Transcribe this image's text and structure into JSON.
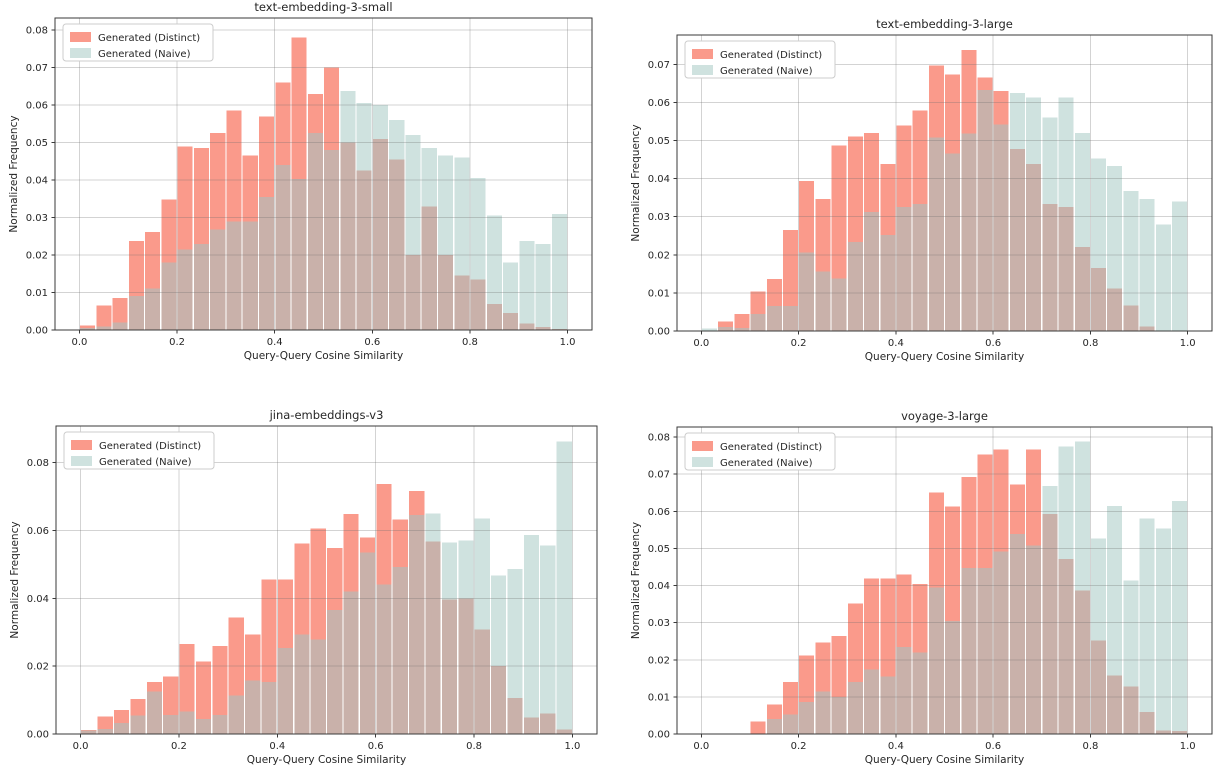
{
  "figure": {
    "background": "#ffffff"
  },
  "colors": {
    "distinct": "#FA9A8B",
    "naive": "#CFE2DF",
    "overlap": "#C9B1AA",
    "grid": "#6e6e6e",
    "spine": "#3a3a3a",
    "text": "#262626",
    "legend_border": "#cccccc",
    "legend_bg": "#ffffff"
  },
  "legend": {
    "items": [
      {
        "label": "Generated (Distinct)",
        "color": "#FA9A8B"
      },
      {
        "label": "Generated (Naive)",
        "color": "#CFE2DF"
      }
    ],
    "position": "upper left"
  },
  "axes": {
    "xlabel": "Query-Query Cosine Similarity",
    "ylabel": "Normalized Frequency",
    "xtick_labels": [
      "0.0",
      "0.2",
      "0.4",
      "0.6",
      "0.8",
      "1.0"
    ],
    "xtick_values": [
      0.0,
      0.2,
      0.4,
      0.6,
      0.8,
      1.0
    ],
    "xlim": [
      -0.05,
      1.05
    ],
    "bins": 30,
    "bin_range": [
      0.0,
      1.0
    ],
    "grid": true
  },
  "chart_data": [
    {
      "type": "bar",
      "title": "text-embedding-3-small",
      "position": "top-left",
      "xlabel": "Query-Query Cosine Similarity",
      "ylabel": "Normalized Frequency",
      "ylim": [
        0,
        0.0832
      ],
      "ytick_labels": [
        "0.00",
        "0.01",
        "0.02",
        "0.03",
        "0.04",
        "0.05",
        "0.06",
        "0.07",
        "0.08"
      ],
      "series": [
        {
          "name": "Generated (Distinct)",
          "values": [
            0.0012,
            0.0065,
            0.0085,
            0.0238,
            0.0262,
            0.0348,
            0.049,
            0.0485,
            0.0525,
            0.0585,
            0.0465,
            0.057,
            0.066,
            0.078,
            0.063,
            0.07,
            0.05,
            0.0425,
            0.051,
            0.0455,
            0.02,
            0.033,
            0.02,
            0.0145,
            0.0135,
            0.007,
            0.0045,
            0.0018,
            0.0008,
            0.0003
          ]
        },
        {
          "name": "Generated (Naive)",
          "values": [
            0.0005,
            0.001,
            0.002,
            0.0091,
            0.0111,
            0.018,
            0.0215,
            0.023,
            0.0268,
            0.029,
            0.029,
            0.0355,
            0.044,
            0.0403,
            0.0525,
            0.048,
            0.0638,
            0.0605,
            0.06,
            0.056,
            0.052,
            0.0485,
            0.0465,
            0.046,
            0.0405,
            0.0305,
            0.018,
            0.0238,
            0.023,
            0.031
          ]
        }
      ]
    },
    {
      "type": "bar",
      "title": "text-embedding-3-large",
      "position": "top-right",
      "xlabel": "Query-Query Cosine Similarity",
      "ylabel": "Normalized Frequency",
      "ylim": [
        0,
        0.0777
      ],
      "ytick_labels": [
        "0.00",
        "0.01",
        "0.02",
        "0.03",
        "0.04",
        "0.05",
        "0.06",
        "0.07"
      ],
      "series": [
        {
          "name": "Generated (Distinct)",
          "values": [
            0.0,
            0.0025,
            0.0045,
            0.0104,
            0.0136,
            0.0265,
            0.0394,
            0.0346,
            0.0487,
            0.051,
            0.052,
            0.0438,
            0.054,
            0.0579,
            0.0697,
            0.0673,
            0.0738,
            0.0665,
            0.063,
            0.0478,
            0.0438,
            0.0334,
            0.0325,
            0.022,
            0.0165,
            0.0112,
            0.0067,
            0.0012,
            0.0,
            0.0
          ]
        },
        {
          "name": "Generated (Naive)",
          "values": [
            0.0007,
            0.001,
            0.0008,
            0.0045,
            0.0065,
            0.0065,
            0.0206,
            0.0156,
            0.0138,
            0.0233,
            0.0313,
            0.0252,
            0.0326,
            0.0334,
            0.0508,
            0.0466,
            0.0518,
            0.0633,
            0.0542,
            0.0625,
            0.0613,
            0.056,
            0.0613,
            0.052,
            0.0453,
            0.0433,
            0.0367,
            0.0347,
            0.028,
            0.034
          ]
        }
      ]
    },
    {
      "type": "bar",
      "title": "jina-embeddings-v3",
      "position": "bottom-left",
      "xlabel": "Query-Query Cosine Similarity",
      "ylabel": "Normalized Frequency",
      "ylim": [
        0,
        0.0908
      ],
      "ytick_labels": [
        "0.00",
        "0.02",
        "0.04",
        "0.06",
        "0.08"
      ],
      "series": [
        {
          "name": "Generated (Distinct)",
          "values": [
            0.0012,
            0.0051,
            0.0071,
            0.0103,
            0.0153,
            0.017,
            0.0266,
            0.0214,
            0.026,
            0.0343,
            0.0294,
            0.0455,
            0.0455,
            0.0561,
            0.0606,
            0.0549,
            0.0648,
            0.058,
            0.0737,
            0.0633,
            0.0716,
            0.0567,
            0.0397,
            0.04,
            0.0308,
            0.02,
            0.0106,
            0.0048,
            0.006,
            0.0013
          ]
        },
        {
          "name": "Generated (Naive)",
          "values": [
            0.001,
            0.0015,
            0.0033,
            0.0055,
            0.0125,
            0.0056,
            0.0067,
            0.0044,
            0.0056,
            0.0113,
            0.0158,
            0.0153,
            0.0253,
            0.0294,
            0.0278,
            0.0366,
            0.042,
            0.0535,
            0.0441,
            0.0493,
            0.0645,
            0.065,
            0.0565,
            0.057,
            0.0635,
            0.0467,
            0.0487,
            0.0587,
            0.0555,
            0.0863
          ]
        }
      ]
    },
    {
      "type": "bar",
      "title": "voyage-3-large",
      "position": "bottom-right",
      "xlabel": "Query-Query Cosine Similarity",
      "ylabel": "Normalized Frequency",
      "ylim": [
        0,
        0.0827
      ],
      "ytick_labels": [
        "0.00",
        "0.01",
        "0.02",
        "0.03",
        "0.04",
        "0.05",
        "0.06",
        "0.07",
        "0.08"
      ],
      "series": [
        {
          "name": "Generated (Distinct)",
          "values": [
            0.0,
            0.0,
            0.0,
            0.0033,
            0.0079,
            0.014,
            0.0211,
            0.0246,
            0.0264,
            0.0352,
            0.0419,
            0.0419,
            0.043,
            0.0404,
            0.065,
            0.0613,
            0.0692,
            0.0753,
            0.0767,
            0.0672,
            0.0767,
            0.0593,
            0.0471,
            0.0386,
            0.0252,
            0.0158,
            0.0128,
            0.0059,
            0.001,
            0.0008
          ]
        },
        {
          "name": "Generated (Naive)",
          "values": [
            0.0,
            0.0,
            0.0,
            0.0,
            0.004,
            0.0053,
            0.0086,
            0.0114,
            0.0099,
            0.014,
            0.0174,
            0.0155,
            0.0235,
            0.022,
            0.0395,
            0.0305,
            0.0447,
            0.0447,
            0.0492,
            0.0539,
            0.0508,
            0.0668,
            0.0774,
            0.0788,
            0.0526,
            0.0614,
            0.0414,
            0.058,
            0.0553,
            0.0627
          ]
        }
      ]
    }
  ]
}
